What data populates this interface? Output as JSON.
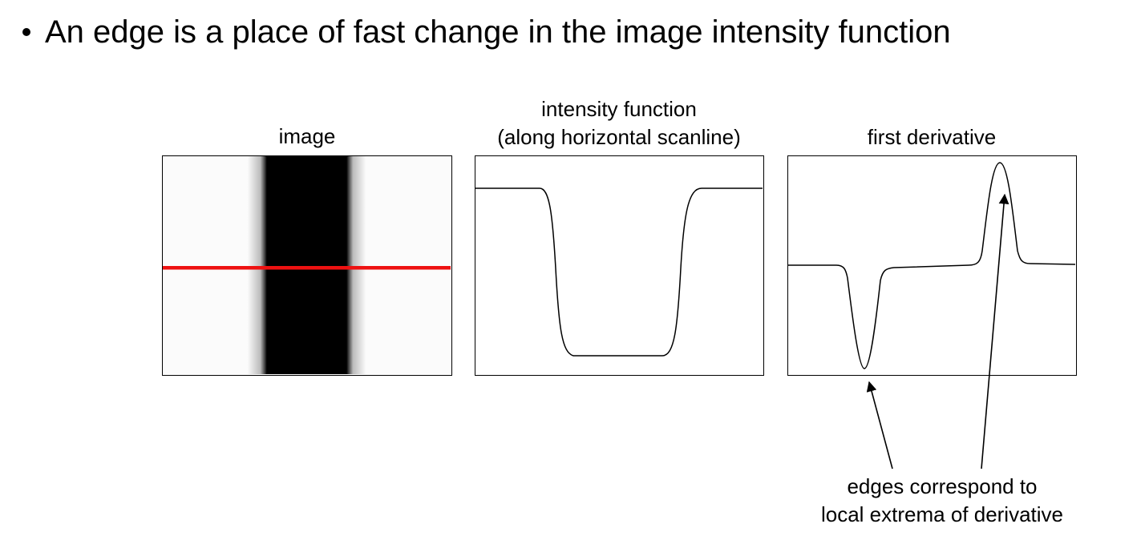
{
  "bullet": {
    "text": "An edge is a place of fast change in the image intensity function"
  },
  "panels": {
    "image": {
      "title": "image"
    },
    "intensity": {
      "title_line1": "intensity function",
      "title_line2": "(along horizontal scanline)"
    },
    "derivative": {
      "title": "first derivative"
    }
  },
  "annotation": {
    "line1": "edges correspond to",
    "line2": "local extrema of derivative"
  },
  "colors": {
    "scanline": "#ee1111",
    "bar": "#000000",
    "background": "#fbfbfb"
  }
}
